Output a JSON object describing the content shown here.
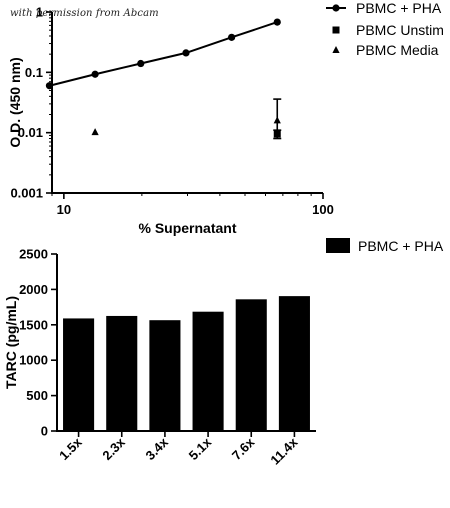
{
  "watermark": "with permission from Abcam",
  "chart_data": [
    {
      "type": "scatter",
      "xlabel": "% Supernatant",
      "ylabel": "O.D. (450 nm)",
      "xscale": "log",
      "yscale": "log",
      "xlim": [
        9,
        100
      ],
      "ylim": [
        0.001,
        1
      ],
      "xticks": [
        10,
        100
      ],
      "xtick_labels": [
        "10",
        "100"
      ],
      "yticks": [
        0.001,
        0.01,
        0.1,
        1
      ],
      "ytick_labels": [
        "0.001",
        "0.01",
        "0.1",
        "1"
      ],
      "grid": false,
      "legend_position": "top-right",
      "series": [
        {
          "name": "PBMC + PHA",
          "marker": "circle",
          "line": true,
          "x": [
            8.8,
            13.2,
            19.8,
            29.6,
            44.4,
            66.6
          ],
          "y": [
            0.06,
            0.093,
            0.14,
            0.21,
            0.38,
            0.68
          ]
        },
        {
          "name": "PBMC Unstim",
          "marker": "square",
          "line": false,
          "x": [
            66.6
          ],
          "y": [
            0.0095
          ],
          "error": [
            0.0015
          ]
        },
        {
          "name": "PBMC Media",
          "marker": "triangle",
          "line": false,
          "x": [
            13.2,
            66.6
          ],
          "y": [
            0.0102,
            0.016
          ],
          "error": [
            0,
            0.02
          ]
        }
      ]
    },
    {
      "type": "bar",
      "ylabel": "TARC (pg/mL)",
      "ylim": [
        0,
        2500
      ],
      "yticks": [
        0,
        500,
        1000,
        1500,
        2000,
        2500
      ],
      "ytick_labels": [
        "0",
        "500",
        "1000",
        "1500",
        "2000",
        "2500"
      ],
      "categories": [
        "1.5x",
        "2.3x",
        "3.4x",
        "5.1x",
        "7.6x",
        "11.4x"
      ],
      "grid": false,
      "legend_position": "top-right",
      "series": [
        {
          "name": "PBMC + PHA",
          "values": [
            1590,
            1625,
            1565,
            1685,
            1860,
            1905
          ]
        }
      ]
    }
  ]
}
